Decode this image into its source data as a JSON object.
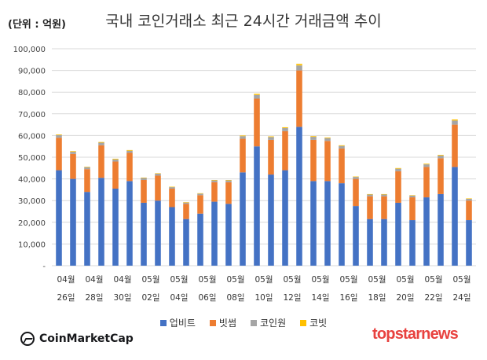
{
  "chart_data": {
    "type": "bar",
    "stacked": true,
    "title": "국내 코인거래소 최근 24시간 거래금액 추이",
    "unit": "(단위 : 억원)",
    "ylim": [
      0,
      100000
    ],
    "y_ticks": [
      "-",
      "10,000",
      "20,000",
      "30,000",
      "40,000",
      "50,000",
      "60,000",
      "70,000",
      "80,000",
      "90,000",
      "100,000"
    ],
    "grid": true,
    "legend_position": "bottom",
    "x_tick_labels": [
      {
        "month": "04월",
        "day": "26일"
      },
      {
        "month": "04월",
        "day": "28일"
      },
      {
        "month": "04월",
        "day": "30일"
      },
      {
        "month": "05월",
        "day": "02일"
      },
      {
        "month": "05월",
        "day": "04일"
      },
      {
        "month": "05월",
        "day": "06일"
      },
      {
        "month": "05월",
        "day": "08일"
      },
      {
        "month": "05월",
        "day": "10일"
      },
      {
        "month": "05월",
        "day": "12일"
      },
      {
        "month": "05월",
        "day": "14일"
      },
      {
        "month": "05월",
        "day": "16일"
      },
      {
        "month": "05월",
        "day": "18일"
      },
      {
        "month": "05월",
        "day": "20일"
      },
      {
        "month": "05월",
        "day": "22일"
      },
      {
        "month": "05월",
        "day": "24일"
      }
    ],
    "series": [
      {
        "name": "업비트",
        "color": "#4472c4",
        "values": [
          44000,
          40000,
          34000,
          40500,
          35500,
          39000,
          29000,
          30000,
          27000,
          21500,
          24000,
          29500,
          28500,
          43000,
          55000,
          42000,
          44000,
          64000,
          39000,
          39000,
          38000,
          27500,
          21500,
          21500,
          29000,
          21000,
          31500,
          33000,
          45500,
          21000
        ]
      },
      {
        "name": "빗썸",
        "color": "#ed7d31",
        "values": [
          15000,
          11500,
          10500,
          15000,
          12500,
          13000,
          10500,
          11500,
          8500,
          7000,
          8500,
          9000,
          10000,
          15500,
          22000,
          16000,
          18000,
          26000,
          19000,
          18500,
          16000,
          12500,
          10500,
          10500,
          14500,
          10500,
          14000,
          16500,
          19500,
          9000
        ]
      },
      {
        "name": "코인원",
        "color": "#a5a5a5",
        "values": [
          1200,
          1000,
          900,
          1200,
          1000,
          1000,
          900,
          900,
          700,
          600,
          700,
          800,
          800,
          1200,
          1700,
          1300,
          1400,
          2300,
          1400,
          1300,
          1200,
          900,
          800,
          800,
          1200,
          800,
          1200,
          1300,
          1900,
          800
        ]
      },
      {
        "name": "코빗",
        "color": "#ffc000",
        "values": [
          300,
          300,
          200,
          300,
          300,
          300,
          200,
          200,
          200,
          200,
          200,
          200,
          200,
          300,
          500,
          300,
          400,
          700,
          300,
          300,
          300,
          200,
          200,
          200,
          300,
          200,
          300,
          300,
          500,
          200
        ]
      }
    ]
  },
  "branding": {
    "left_logo": "CoinMarketCap",
    "right_logo": "topstarnews"
  }
}
